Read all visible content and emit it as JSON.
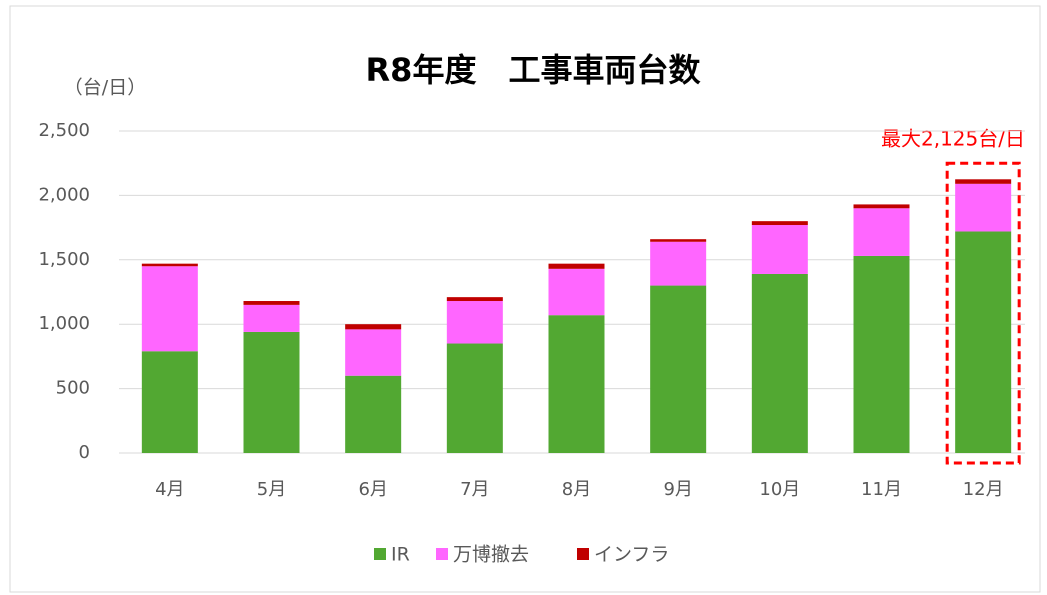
{
  "chart_data": {
    "type": "bar",
    "stacked": true,
    "title": "R8年度　工事車両台数",
    "y_axis_label": "（台/日）",
    "annotation": "最大2,125台/日",
    "categories": [
      "4月",
      "5月",
      "6月",
      "7月",
      "8月",
      "9月",
      "10月",
      "11月",
      "12月"
    ],
    "series": [
      {
        "name": "IR",
        "color": "#52a832",
        "values": [
          790,
          940,
          600,
          850,
          1070,
          1300,
          1390,
          1530,
          1720
        ]
      },
      {
        "name": "万博撤去",
        "color": "#ff66ff",
        "values": [
          660,
          210,
          360,
          330,
          360,
          340,
          380,
          370,
          370
        ]
      },
      {
        "name": "インフラ",
        "color": "#c00000",
        "values": [
          20,
          30,
          40,
          30,
          40,
          20,
          30,
          30,
          35
        ]
      }
    ],
    "ylim": [
      0,
      2500
    ],
    "yticks": [
      0,
      500,
      {
        "value": 1000,
        "label": "1,000"
      },
      {
        "value": 1500,
        "label": "1,500"
      },
      {
        "value": 2000,
        "label": "2,000"
      },
      {
        "value": 2500,
        "label": "2,500"
      }
    ],
    "grid": true,
    "legend": "bottom"
  }
}
